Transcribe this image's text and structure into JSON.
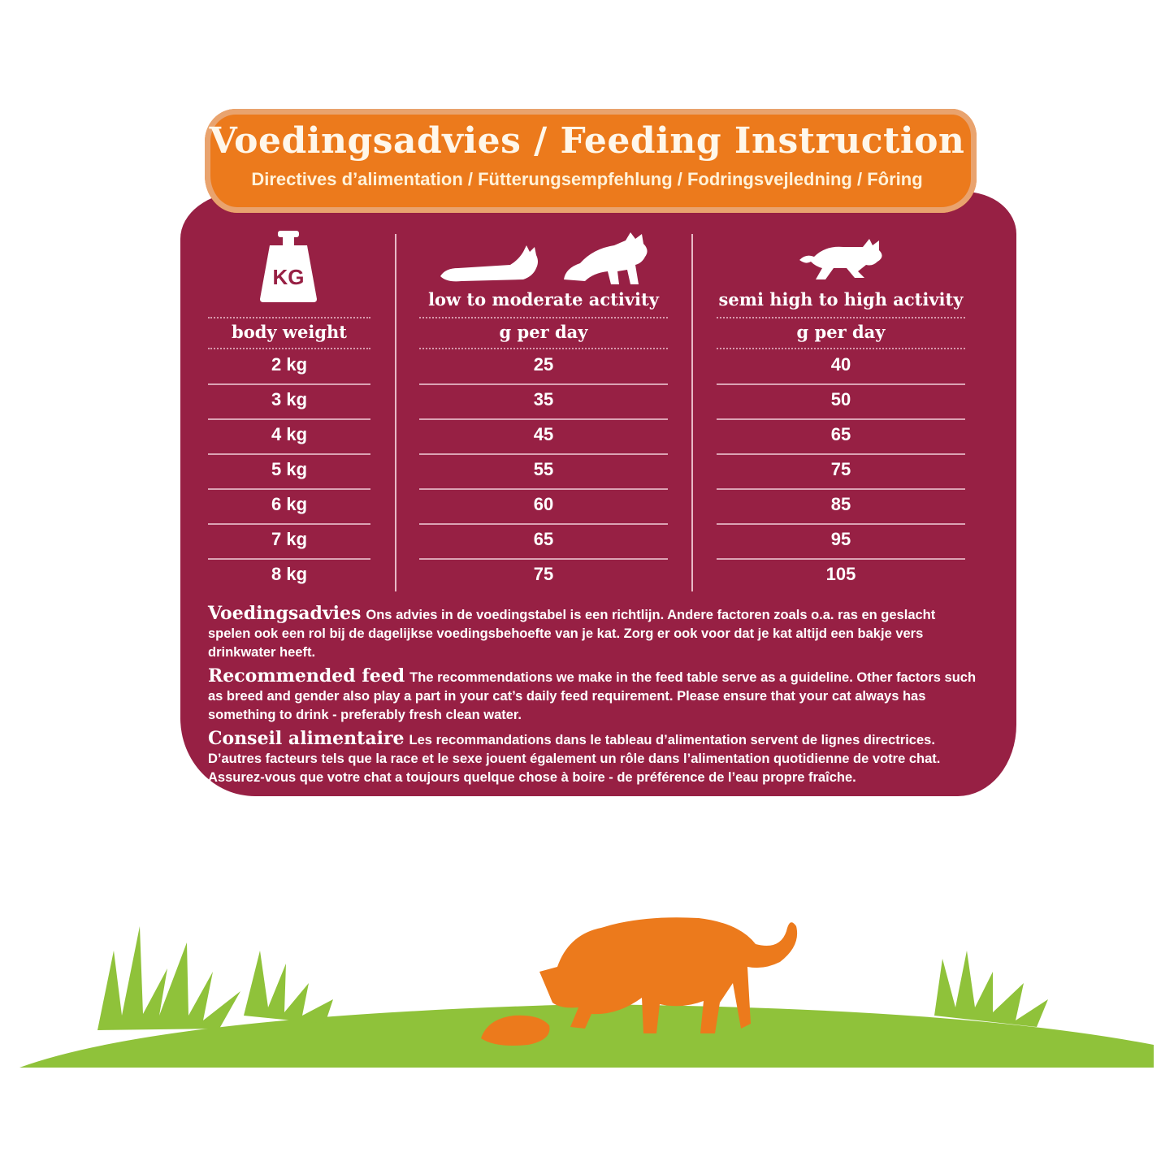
{
  "header": {
    "title": "Voedingsadvies / Feeding Instruction",
    "subtitle": "Directives d’alimentation / Fütterungsempfehlung / Fodringsvejledning / Fôring"
  },
  "icons": {
    "weight": "kg-weight-icon",
    "weight_label": "KG",
    "low_activity": [
      "lying-cat-icon",
      "sitting-cat-icon"
    ],
    "high_activity": "running-cat-icon",
    "scene": [
      "grass-icon",
      "eating-cat-icon",
      "food-bowl-icon"
    ]
  },
  "table": {
    "columns": [
      {
        "heading": "",
        "subheading": "body weight"
      },
      {
        "heading": "low to moderate activity",
        "subheading": "g per day"
      },
      {
        "heading": "semi high to high activity",
        "subheading": "g per day"
      }
    ],
    "rows": [
      [
        "2 kg",
        "25",
        "40"
      ],
      [
        "3 kg",
        "35",
        "50"
      ],
      [
        "4 kg",
        "45",
        "65"
      ],
      [
        "5 kg",
        "55",
        "75"
      ],
      [
        "6 kg",
        "60",
        "85"
      ],
      [
        "7 kg",
        "65",
        "95"
      ],
      [
        "8 kg",
        "75",
        "105"
      ]
    ]
  },
  "notes": [
    {
      "heading": "Voedingsadvies",
      "text": "Ons advies in de voedingstabel is een richtlijn. Andere factoren zoals o.a. ras en geslacht spelen ook een rol bij de dagelijkse voedingsbehoefte van je kat. Zorg er ook voor dat je kat altijd een bakje vers drinkwater heeft."
    },
    {
      "heading": "Recommended feed",
      "text": "The recommendations we make in the feed table serve as a guideline. Other factors such as breed and gender also play a part in your cat’s daily feed requirement. Please ensure that your cat always has something to drink - preferably fresh clean water."
    },
    {
      "heading": "Conseil alimentaire",
      "text": "Les recommandations dans le tableau d’alimentation servent de lignes directrices. D’autres facteurs tels que la race et le sexe jouent également un rôle dans l’alimentation quotidienne de votre chat. Assurez-vous que votre chat a toujours quelque chose à boire - de préférence de l’eau propre fraîche."
    }
  ],
  "colors": {
    "panel": "#972044",
    "banner": "#ec7a1c",
    "grass": "#8fc23a",
    "cat": "#ec7a1c"
  }
}
